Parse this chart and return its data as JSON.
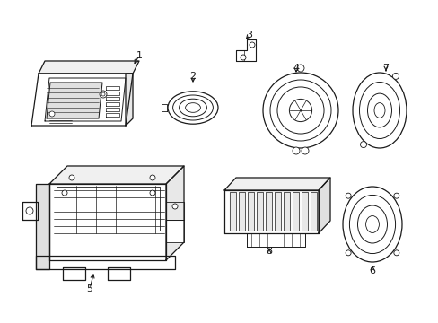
{
  "background_color": "#ffffff",
  "line_color": "#1a1a1a",
  "line_width": 0.9,
  "fig_width": 4.89,
  "fig_height": 3.6,
  "dpi": 100
}
